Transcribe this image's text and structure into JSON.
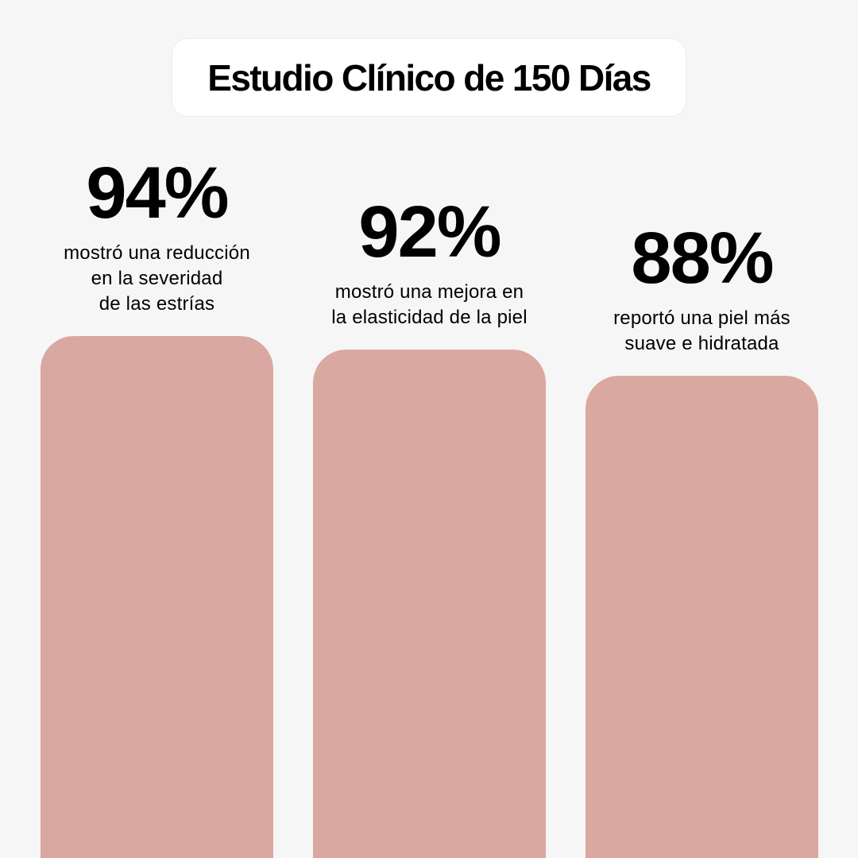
{
  "title": "Estudio Clínico de 150 Días",
  "colors": {
    "background": "#f6f6f6",
    "bar": "#d9a8a1",
    "title_box": "#ffffff",
    "text": "#000000"
  },
  "chart_data": {
    "type": "bar",
    "title": "Estudio Clínico de 150 Días",
    "unit": "%",
    "ylim": [
      0,
      100
    ],
    "grid": false,
    "categories": [
      "mostró una reducción en la severidad de las estrías",
      "mostró una mejora en la elasticidad de la piel",
      "reportó una piel más suave e hidratada"
    ],
    "values": [
      94,
      92,
      88
    ],
    "value_labels": [
      "94%",
      "92%",
      "88%"
    ],
    "descriptions": [
      "mostró una reducción\nen la severidad\nde las estrías",
      "mostró una mejora en\nla elasticidad de la piel",
      "reportó una piel más\nsuave e hidratada"
    ]
  }
}
